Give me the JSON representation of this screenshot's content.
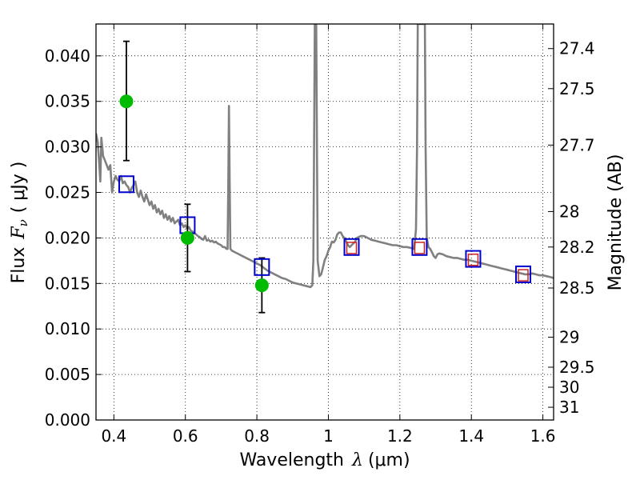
{
  "chart_data": {
    "type": "scatter",
    "xlabel_prefix": "Wavelength",
    "xlabel_math": "λ",
    "xlabel_unit": "(μm)",
    "ylabel_prefix": "Flux",
    "ylabel_math": "F",
    "ylabel_sub": "ν",
    "ylabel_unit": "( μJy )",
    "y2label": "Magnitude (AB)",
    "xlim": [
      0.35,
      1.63
    ],
    "ylim": [
      0.0,
      0.0435
    ],
    "grid": true,
    "xticks": [
      0.4,
      0.6,
      0.8,
      1.0,
      1.2,
      1.4,
      1.6
    ],
    "xtick_labels": [
      "0.4",
      "0.6",
      "0.8",
      "1",
      "1.2",
      "1.4",
      "1.6"
    ],
    "yticks": [
      0.0,
      0.005,
      0.01,
      0.015,
      0.02,
      0.025,
      0.03,
      0.035,
      0.04
    ],
    "ytick_labels": [
      "0.000",
      "0.005",
      "0.010",
      "0.015",
      "0.020",
      "0.025",
      "0.030",
      "0.035",
      "0.040"
    ],
    "mag_ticks": [
      {
        "label": "27.4",
        "flux": 0.0408
      },
      {
        "label": "27.5",
        "flux": 0.0364
      },
      {
        "label": "27.7",
        "flux": 0.0302
      },
      {
        "label": "28",
        "flux": 0.0229
      },
      {
        "label": "28.2",
        "flux": 0.019
      },
      {
        "label": "28.5",
        "flux": 0.0145
      },
      {
        "label": "29",
        "flux": 0.0091
      },
      {
        "label": "29.5",
        "flux": 0.0058
      },
      {
        "label": "30",
        "flux": 0.0036
      },
      {
        "label": "31",
        "flux": 0.0014
      }
    ],
    "observed": {
      "color": "#00bb00",
      "points": [
        {
          "x": 0.435,
          "y": 0.035,
          "err_lo": 0.0285,
          "err_hi": 0.0416
        },
        {
          "x": 0.606,
          "y": 0.02,
          "err_lo": 0.0163,
          "err_hi": 0.0237
        },
        {
          "x": 0.814,
          "y": 0.0148,
          "err_lo": 0.0118,
          "err_hi": 0.0178
        }
      ]
    },
    "model_blue": {
      "color": "#0000cc",
      "points": [
        {
          "x": 0.435,
          "y": 0.0259
        },
        {
          "x": 0.606,
          "y": 0.0214
        },
        {
          "x": 0.814,
          "y": 0.0168
        },
        {
          "x": 1.065,
          "y": 0.019
        },
        {
          "x": 1.255,
          "y": 0.019
        },
        {
          "x": 1.405,
          "y": 0.0177
        },
        {
          "x": 1.545,
          "y": 0.016
        }
      ]
    },
    "model_red": {
      "color": "#cc2222",
      "points": [
        {
          "x": 1.065,
          "y": 0.0189
        },
        {
          "x": 1.255,
          "y": 0.0189
        },
        {
          "x": 1.405,
          "y": 0.0176
        },
        {
          "x": 1.545,
          "y": 0.0159
        }
      ]
    },
    "sed": {
      "color": "#808080",
      "points": [
        [
          0.35,
          0.0315
        ],
        [
          0.355,
          0.0305
        ],
        [
          0.36,
          0.0275
        ],
        [
          0.362,
          0.0262
        ],
        [
          0.365,
          0.031
        ],
        [
          0.37,
          0.029
        ],
        [
          0.375,
          0.0285
        ],
        [
          0.38,
          0.028
        ],
        [
          0.385,
          0.0275
        ],
        [
          0.39,
          0.028
        ],
        [
          0.395,
          0.025
        ],
        [
          0.4,
          0.0262
        ],
        [
          0.405,
          0.0268
        ],
        [
          0.41,
          0.0264
        ],
        [
          0.415,
          0.0262
        ],
        [
          0.42,
          0.0268
        ],
        [
          0.425,
          0.026
        ],
        [
          0.43,
          0.0262
        ],
        [
          0.435,
          0.0258
        ],
        [
          0.44,
          0.0256
        ],
        [
          0.445,
          0.025
        ],
        [
          0.45,
          0.0255
        ],
        [
          0.455,
          0.0258
        ],
        [
          0.46,
          0.0262
        ],
        [
          0.465,
          0.025
        ],
        [
          0.47,
          0.0245
        ],
        [
          0.475,
          0.0252
        ],
        [
          0.48,
          0.0245
        ],
        [
          0.485,
          0.024
        ],
        [
          0.49,
          0.0248
        ],
        [
          0.495,
          0.0242
        ],
        [
          0.5,
          0.0236
        ],
        [
          0.505,
          0.024
        ],
        [
          0.51,
          0.0232
        ],
        [
          0.515,
          0.0236
        ],
        [
          0.52,
          0.0228
        ],
        [
          0.525,
          0.0232
        ],
        [
          0.53,
          0.0226
        ],
        [
          0.535,
          0.023
        ],
        [
          0.54,
          0.0222
        ],
        [
          0.545,
          0.0226
        ],
        [
          0.55,
          0.022
        ],
        [
          0.555,
          0.0224
        ],
        [
          0.56,
          0.0218
        ],
        [
          0.565,
          0.0222
        ],
        [
          0.57,
          0.0216
        ],
        [
          0.575,
          0.0218
        ],
        [
          0.58,
          0.022
        ],
        [
          0.585,
          0.0214
        ],
        [
          0.59,
          0.0216
        ],
        [
          0.595,
          0.0212
        ],
        [
          0.6,
          0.0214
        ],
        [
          0.605,
          0.021
        ],
        [
          0.61,
          0.0212
        ],
        [
          0.615,
          0.0208
        ],
        [
          0.62,
          0.0207
        ],
        [
          0.625,
          0.0205
        ],
        [
          0.63,
          0.0204
        ],
        [
          0.635,
          0.0202
        ],
        [
          0.64,
          0.0201
        ],
        [
          0.645,
          0.0199
        ],
        [
          0.65,
          0.0198
        ],
        [
          0.655,
          0.0202
        ],
        [
          0.66,
          0.0197
        ],
        [
          0.665,
          0.0198
        ],
        [
          0.67,
          0.0196
        ],
        [
          0.675,
          0.0197
        ],
        [
          0.68,
          0.0195
        ],
        [
          0.685,
          0.0196
        ],
        [
          0.69,
          0.0194
        ],
        [
          0.695,
          0.0193
        ],
        [
          0.7,
          0.0192
        ],
        [
          0.705,
          0.019
        ],
        [
          0.71,
          0.019
        ],
        [
          0.715,
          0.0188
        ],
        [
          0.718,
          0.0188
        ],
        [
          0.72,
          0.0255
        ],
        [
          0.722,
          0.0345
        ],
        [
          0.724,
          0.026
        ],
        [
          0.726,
          0.0188
        ],
        [
          0.73,
          0.0186
        ],
        [
          0.74,
          0.0184
        ],
        [
          0.75,
          0.0182
        ],
        [
          0.76,
          0.018
        ],
        [
          0.77,
          0.0178
        ],
        [
          0.78,
          0.0176
        ],
        [
          0.79,
          0.0174
        ],
        [
          0.8,
          0.0172
        ],
        [
          0.81,
          0.017
        ],
        [
          0.82,
          0.0167
        ],
        [
          0.83,
          0.0164
        ],
        [
          0.84,
          0.0162
        ],
        [
          0.85,
          0.016
        ],
        [
          0.86,
          0.0158
        ],
        [
          0.87,
          0.0156
        ],
        [
          0.88,
          0.0155
        ],
        [
          0.89,
          0.0153
        ],
        [
          0.9,
          0.0151
        ],
        [
          0.91,
          0.015
        ],
        [
          0.92,
          0.0149
        ],
        [
          0.93,
          0.0148
        ],
        [
          0.94,
          0.0147
        ],
        [
          0.95,
          0.0146
        ],
        [
          0.955,
          0.0148
        ],
        [
          0.958,
          0.0175
        ],
        [
          0.96,
          0.03
        ],
        [
          0.962,
          0.0435
        ],
        [
          0.966,
          0.0435
        ],
        [
          0.968,
          0.03
        ],
        [
          0.97,
          0.0175
        ],
        [
          0.975,
          0.0158
        ],
        [
          0.98,
          0.016
        ],
        [
          0.985,
          0.0168
        ],
        [
          0.99,
          0.0176
        ],
        [
          0.995,
          0.018
        ],
        [
          1.0,
          0.0186
        ],
        [
          1.005,
          0.019
        ],
        [
          1.01,
          0.0196
        ],
        [
          1.015,
          0.0195
        ],
        [
          1.02,
          0.0198
        ],
        [
          1.025,
          0.0204
        ],
        [
          1.03,
          0.0206
        ],
        [
          1.035,
          0.0206
        ],
        [
          1.04,
          0.0202
        ],
        [
          1.045,
          0.02
        ],
        [
          1.05,
          0.0196
        ],
        [
          1.055,
          0.0192
        ],
        [
          1.06,
          0.019
        ],
        [
          1.065,
          0.0192
        ],
        [
          1.07,
          0.0194
        ],
        [
          1.075,
          0.0196
        ],
        [
          1.08,
          0.02
        ],
        [
          1.09,
          0.0202
        ],
        [
          1.1,
          0.0202
        ],
        [
          1.11,
          0.02
        ],
        [
          1.12,
          0.0198
        ],
        [
          1.13,
          0.0197
        ],
        [
          1.14,
          0.0196
        ],
        [
          1.15,
          0.0195
        ],
        [
          1.16,
          0.0194
        ],
        [
          1.17,
          0.0193
        ],
        [
          1.18,
          0.0192
        ],
        [
          1.19,
          0.0192
        ],
        [
          1.2,
          0.0191
        ],
        [
          1.21,
          0.019
        ],
        [
          1.22,
          0.019
        ],
        [
          1.23,
          0.0189
        ],
        [
          1.24,
          0.0188
        ],
        [
          1.245,
          0.021
        ],
        [
          1.248,
          0.03
        ],
        [
          1.25,
          0.0435
        ],
        [
          1.27,
          0.0435
        ],
        [
          1.272,
          0.03
        ],
        [
          1.275,
          0.02
        ],
        [
          1.28,
          0.019
        ],
        [
          1.285,
          0.0188
        ],
        [
          1.29,
          0.0184
        ],
        [
          1.295,
          0.018
        ],
        [
          1.3,
          0.0178
        ],
        [
          1.305,
          0.0182
        ],
        [
          1.31,
          0.0183
        ],
        [
          1.32,
          0.0182
        ],
        [
          1.33,
          0.018
        ],
        [
          1.34,
          0.0179
        ],
        [
          1.35,
          0.0178
        ],
        [
          1.36,
          0.0178
        ],
        [
          1.37,
          0.0177
        ],
        [
          1.38,
          0.0176
        ],
        [
          1.39,
          0.0176
        ],
        [
          1.4,
          0.0175
        ],
        [
          1.41,
          0.0174
        ],
        [
          1.42,
          0.0173
        ],
        [
          1.43,
          0.0172
        ],
        [
          1.44,
          0.0171
        ],
        [
          1.45,
          0.017
        ],
        [
          1.46,
          0.0169
        ],
        [
          1.47,
          0.0168
        ],
        [
          1.48,
          0.0167
        ],
        [
          1.49,
          0.0166
        ],
        [
          1.5,
          0.0165
        ],
        [
          1.51,
          0.0164
        ],
        [
          1.52,
          0.0163
        ],
        [
          1.53,
          0.0162
        ],
        [
          1.54,
          0.0161
        ],
        [
          1.55,
          0.016
        ],
        [
          1.56,
          0.016
        ],
        [
          1.57,
          0.0161
        ],
        [
          1.58,
          0.016
        ],
        [
          1.59,
          0.0159
        ],
        [
          1.6,
          0.0159
        ],
        [
          1.61,
          0.0158
        ],
        [
          1.62,
          0.0157
        ],
        [
          1.63,
          0.0156
        ]
      ]
    }
  }
}
